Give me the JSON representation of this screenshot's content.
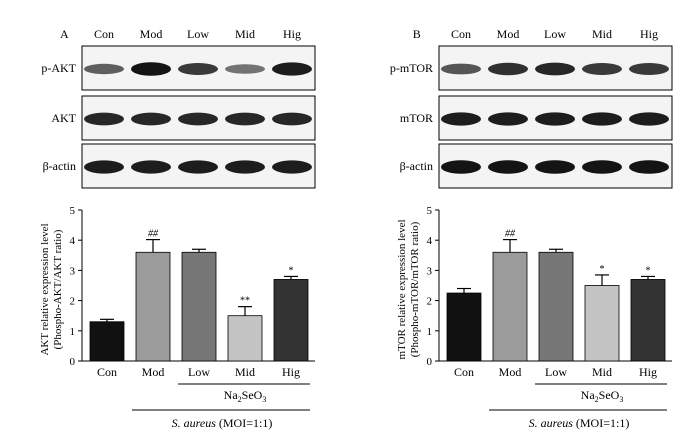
{
  "blot_lanes": [
    "Con",
    "Mod",
    "Low",
    "Mid",
    "Hig"
  ],
  "treatment_label": "Na2SeO3",
  "group_label_italic": "S. aureus",
  "group_label_rest": " (MOI=1:1)",
  "panels": [
    {
      "letter": "A",
      "blots": [
        {
          "label": "p-AKT",
          "intensity": [
            0.55,
            0.95,
            0.75,
            0.45,
            0.9
          ]
        },
        {
          "label": "AKT",
          "intensity": [
            0.85,
            0.85,
            0.85,
            0.85,
            0.85
          ]
        },
        {
          "label": "β-actin",
          "intensity": [
            0.9,
            0.9,
            0.9,
            0.9,
            0.9
          ]
        }
      ]
    },
    {
      "letter": "B",
      "blots": [
        {
          "label": "p-mTOR",
          "intensity": [
            0.6,
            0.8,
            0.85,
            0.75,
            0.75
          ]
        },
        {
          "label": "mTOR",
          "intensity": [
            0.9,
            0.9,
            0.9,
            0.9,
            0.9
          ]
        },
        {
          "label": "β-actin",
          "intensity": [
            0.95,
            0.95,
            0.95,
            0.95,
            0.95
          ]
        }
      ]
    }
  ],
  "chart_data": [
    {
      "type": "bar",
      "panel": "A",
      "categories": [
        "Con",
        "Mod",
        "Low",
        "Mid",
        "Hig"
      ],
      "values": [
        1.3,
        3.6,
        3.6,
        1.5,
        2.7
      ],
      "errors": [
        0.08,
        0.42,
        0.1,
        0.3,
        0.1
      ],
      "annotations": [
        "",
        "##",
        "",
        "**",
        "*"
      ],
      "bar_colors": [
        "#111111",
        "#9b9b9b",
        "#777777",
        "#c4c4c4",
        "#333333"
      ],
      "ylabel_line1": "AKT relative expression level",
      "ylabel_line2": "(Phospho-AKT/AKT ratio)",
      "ylim": [
        0,
        5
      ],
      "yticks": [
        0,
        1,
        2,
        3,
        4,
        5
      ]
    },
    {
      "type": "bar",
      "panel": "B",
      "categories": [
        "Con",
        "Mod",
        "Low",
        "Mid",
        "Hig"
      ],
      "values": [
        2.25,
        3.6,
        3.6,
        2.5,
        2.7
      ],
      "errors": [
        0.15,
        0.42,
        0.1,
        0.35,
        0.1
      ],
      "annotations": [
        "",
        "##",
        "",
        "*",
        "*"
      ],
      "bar_colors": [
        "#111111",
        "#9b9b9b",
        "#777777",
        "#c4c4c4",
        "#333333"
      ],
      "ylabel_line1": "mTOR relative expression level",
      "ylabel_line2": "(Phospho-mTOR/mTOR ratio)",
      "ylim": [
        0,
        5
      ],
      "yticks": [
        0,
        1,
        2,
        3,
        4,
        5
      ]
    }
  ]
}
